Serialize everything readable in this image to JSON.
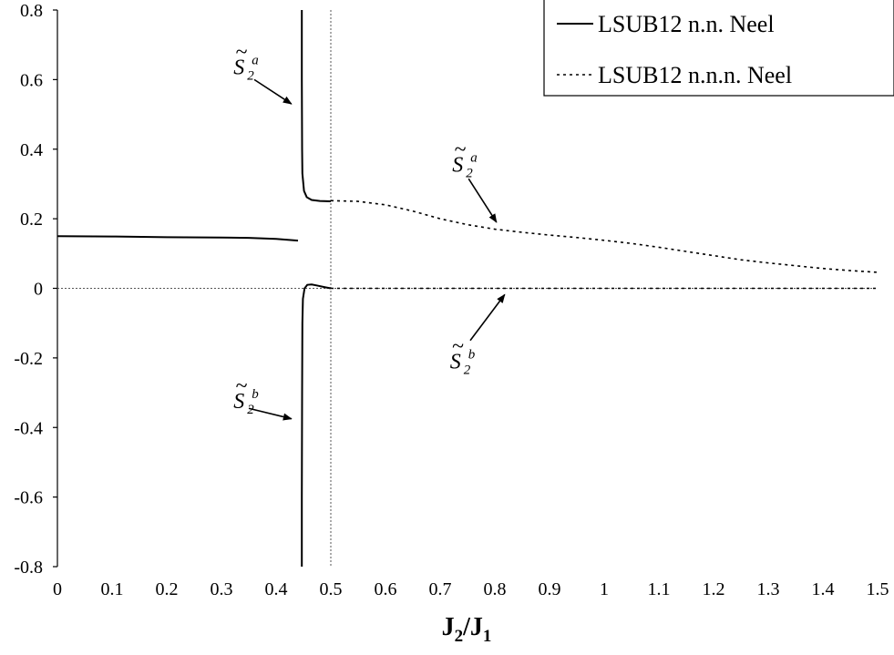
{
  "chart_data": {
    "type": "line",
    "title": "",
    "xlabel": {
      "main": "J",
      "sub1": "2",
      "slash": "/",
      "main2": "J",
      "sub2": "1"
    },
    "ylabel": "",
    "xlim": [
      0,
      1.5
    ],
    "ylim": [
      -0.8,
      0.8
    ],
    "x_ticks": [
      "0",
      "0.1",
      "0.2",
      "0.3",
      "0.4",
      "0.5",
      "0.6",
      "0.7",
      "0.8",
      "0.9",
      "1",
      "1.1",
      "1.2",
      "1.3",
      "1.4",
      "1.5"
    ],
    "y_ticks": [
      "0.8",
      "0.6",
      "0.4",
      "0.2",
      "0",
      "-0.2",
      "-0.4",
      "-0.6",
      "-0.8"
    ],
    "grid": false,
    "legend_position": "top-right",
    "reference_lines": [
      {
        "axis": "y",
        "value": 0,
        "style": "dotted"
      },
      {
        "axis": "x",
        "value": 0.5,
        "style": "dotted"
      }
    ],
    "series": [
      {
        "name": "LSUB12 n.n. Neel",
        "style": "solid",
        "color": "#000000",
        "segments": [
          [
            [
              0,
              0.15
            ],
            [
              0.1,
              0.149
            ],
            [
              0.2,
              0.147
            ],
            [
              0.3,
              0.146
            ],
            [
              0.35,
              0.145
            ],
            [
              0.4,
              0.142
            ],
            [
              0.44,
              0.137
            ]
          ],
          [
            [
              0.447,
              0.8
            ],
            [
              0.447,
              0.6
            ],
            [
              0.4475,
              0.4
            ],
            [
              0.448,
              0.33
            ],
            [
              0.451,
              0.28
            ],
            [
              0.456,
              0.262
            ],
            [
              0.465,
              0.254
            ],
            [
              0.48,
              0.251
            ],
            [
              0.5,
              0.25
            ]
          ],
          [
            [
              0.447,
              -0.8
            ],
            [
              0.447,
              -0.6
            ],
            [
              0.4475,
              -0.3
            ],
            [
              0.448,
              -0.1
            ],
            [
              0.449,
              -0.03
            ],
            [
              0.452,
              0.0
            ],
            [
              0.457,
              0.01
            ],
            [
              0.465,
              0.011
            ],
            [
              0.475,
              0.008
            ],
            [
              0.49,
              0.003
            ],
            [
              0.5,
              0.0
            ]
          ]
        ]
      },
      {
        "name": "LSUB12 n.n.n. Neel",
        "style": "dotted",
        "color": "#000000",
        "segments": [
          [
            [
              0.5,
              0.252
            ],
            [
              0.55,
              0.25
            ],
            [
              0.6,
              0.24
            ],
            [
              0.65,
              0.222
            ],
            [
              0.7,
              0.2
            ],
            [
              0.75,
              0.183
            ],
            [
              0.8,
              0.17
            ],
            [
              0.85,
              0.161
            ],
            [
              0.9,
              0.153
            ],
            [
              0.95,
              0.146
            ],
            [
              1.0,
              0.138
            ],
            [
              1.05,
              0.129
            ],
            [
              1.1,
              0.118
            ],
            [
              1.15,
              0.106
            ],
            [
              1.2,
              0.094
            ],
            [
              1.25,
              0.082
            ],
            [
              1.3,
              0.073
            ],
            [
              1.35,
              0.065
            ],
            [
              1.4,
              0.057
            ],
            [
              1.45,
              0.051
            ],
            [
              1.5,
              0.046
            ]
          ],
          [
            [
              0.5,
              0.0
            ],
            [
              0.6,
              0.0
            ],
            [
              0.7,
              0.0
            ],
            [
              0.8,
              0.0
            ],
            [
              0.9,
              0.0
            ],
            [
              1.0,
              0.0
            ],
            [
              1.1,
              0.0
            ],
            [
              1.2,
              0.0
            ],
            [
              1.3,
              0.0
            ],
            [
              1.4,
              0.0
            ],
            [
              1.5,
              0.0
            ]
          ]
        ]
      }
    ],
    "annotations": [
      {
        "label": "S",
        "sub": "2",
        "sup": "a",
        "text_at": [
          0.322,
          0.615
        ],
        "arrow_from": [
          0.36,
          0.6
        ],
        "arrow_to": [
          0.428,
          0.53
        ]
      },
      {
        "label": "S",
        "sub": "2",
        "sup": "a",
        "text_at": [
          0.722,
          0.335
        ],
        "arrow_from": [
          0.752,
          0.315
        ],
        "arrow_to": [
          0.803,
          0.19
        ]
      },
      {
        "label": "S",
        "sub": "2",
        "sup": "b",
        "text_at": [
          0.718,
          -0.23
        ],
        "arrow_from": [
          0.755,
          -0.15
        ],
        "arrow_to": [
          0.818,
          -0.018
        ]
      },
      {
        "label": "S",
        "sub": "2",
        "sup": "b",
        "text_at": [
          0.322,
          -0.345
        ],
        "arrow_from": [
          0.35,
          -0.345
        ],
        "arrow_to": [
          0.428,
          -0.375
        ]
      }
    ]
  }
}
